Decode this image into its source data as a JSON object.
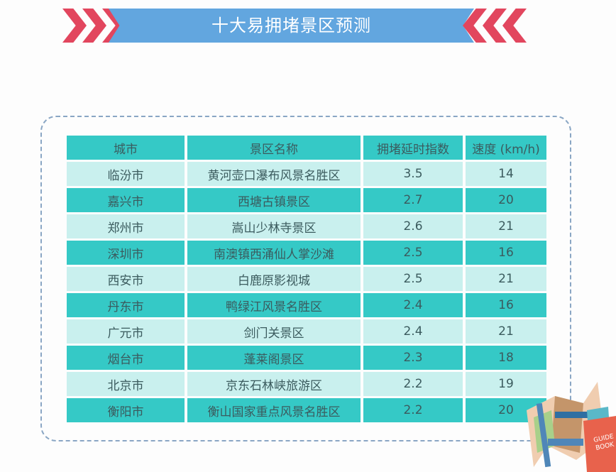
{
  "title": "十大易拥堵景区预测",
  "table": {
    "headers": [
      "城市",
      "景区名称",
      "拥堵延时指数",
      "速度 (km/h)"
    ],
    "rows": [
      [
        "临汾市",
        "黄河壶口瀑布风景名胜区",
        "3.5",
        "14"
      ],
      [
        "嘉兴市",
        "西塘古镇景区",
        "2.7",
        "20"
      ],
      [
        "郑州市",
        "嵩山少林寺景区",
        "2.6",
        "21"
      ],
      [
        "深圳市",
        "南澳镇西涌仙人掌沙滩",
        "2.5",
        "16"
      ],
      [
        "西安市",
        "白鹿原影视城",
        "2.5",
        "21"
      ],
      [
        "丹东市",
        "鸭绿江风景名胜区",
        "2.4",
        "16"
      ],
      [
        "广元市",
        "剑门关景区",
        "2.4",
        "21"
      ],
      [
        "烟台市",
        "蓬莱阁景区",
        "2.3",
        "18"
      ],
      [
        "北京市",
        "京东石林峡旅游区",
        "2.2",
        "19"
      ],
      [
        "衡阳市",
        "衡山国家重点风景名胜区",
        "2.2",
        "20"
      ]
    ]
  },
  "illustration": {
    "icon": "map-guidebook-icon",
    "book_text": "GUIDE BOOK"
  },
  "colors": {
    "banner": "#62a6df",
    "chevron": "#e2465e",
    "header": "#35c9c6",
    "row_light": "#c9f0ee",
    "row_dark": "#35c9c6"
  }
}
